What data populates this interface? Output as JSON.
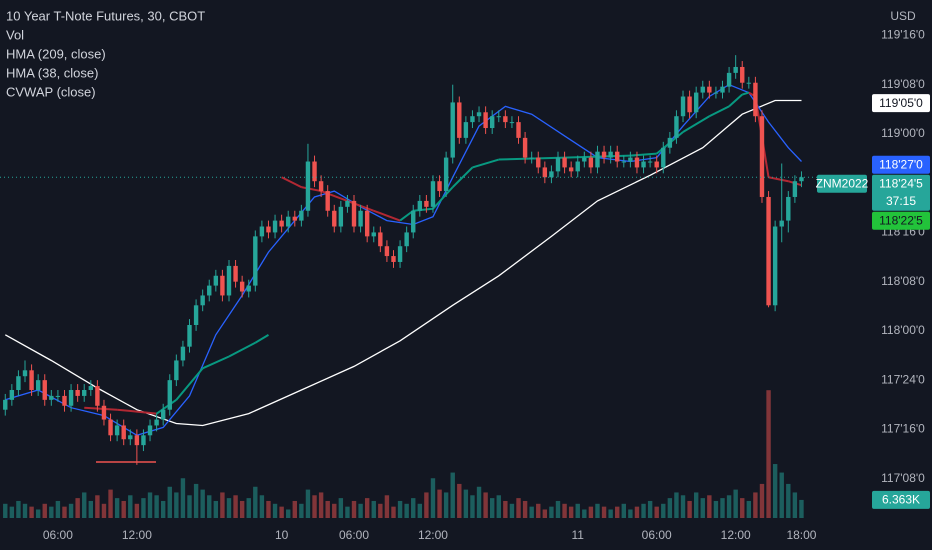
{
  "chart_data": {
    "type": "candlestick",
    "title": "10 Year T-Note Futures, 30, CBOT",
    "currency": "USD",
    "xlim": [
      -0.8,
      130.2
    ],
    "xticks": [
      {
        "value": 8,
        "label": "06:00"
      },
      {
        "value": 20,
        "label": "12:00"
      },
      {
        "value": 42,
        "label": "10"
      },
      {
        "value": 53,
        "label": "06:00"
      },
      {
        "value": 65,
        "label": "12:00"
      },
      {
        "value": 87,
        "label": "11"
      },
      {
        "value": 99,
        "label": "06:00"
      },
      {
        "value": 111,
        "label": "12:00"
      },
      {
        "value": 121,
        "label": "18:00"
      }
    ],
    "ylim": [
      117.04,
      119.68
    ],
    "yticks": [
      {
        "value": 119.5,
        "label": "119'16'0"
      },
      {
        "value": 119.25,
        "label": "119'08'0"
      },
      {
        "value": 119,
        "label": "119'00'0"
      },
      {
        "value": 118.5,
        "label": "118'16'0"
      },
      {
        "value": 118.25,
        "label": "118'08'0"
      },
      {
        "value": 118,
        "label": "118'00'0"
      },
      {
        "value": 117.75,
        "label": "117'24'0"
      },
      {
        "value": 117.5,
        "label": "117'16'0"
      },
      {
        "value": 117.25,
        "label": "117'08'0"
      }
    ],
    "candles": {
      "up_color": "#26a69a",
      "down_color": "#ef5350",
      "open": [
        117.6,
        117.65,
        117.7,
        117.77,
        117.8,
        117.7,
        117.75,
        117.65,
        117.67,
        117.67,
        117.62,
        117.7,
        117.67,
        117.7,
        117.72,
        117.62,
        117.55,
        117.47,
        117.52,
        117.45,
        117.47,
        117.42,
        117.47,
        117.52,
        117.55,
        117.6,
        117.75,
        117.85,
        117.92,
        118.03,
        118.13,
        118.18,
        118.23,
        118.28,
        118.18,
        118.33,
        118.25,
        118.2,
        118.23,
        118.48,
        118.53,
        118.5,
        118.56,
        118.53,
        118.58,
        118.56,
        118.61,
        118.86,
        118.76,
        118.71,
        118.61,
        118.53,
        118.63,
        118.66,
        118.53,
        118.61,
        118.48,
        118.5,
        118.43,
        118.38,
        118.35,
        118.43,
        118.5,
        118.61,
        118.66,
        118.63,
        118.76,
        118.71,
        118.88,
        119.16,
        118.98,
        119.06,
        119.09,
        119.11,
        119.03,
        119.09,
        119.09,
        119.06,
        119.06,
        118.98,
        118.88,
        118.88,
        118.83,
        118.78,
        118.81,
        118.88,
        118.83,
        118.81,
        118.86,
        118.88,
        118.83,
        118.91,
        118.88,
        118.91,
        118.86,
        118.86,
        118.88,
        118.83,
        118.86,
        118.86,
        118.83,
        118.93,
        118.98,
        119.09,
        119.19,
        119.11,
        119.21,
        119.24,
        119.21,
        119.21,
        119.24,
        119.31,
        119.34,
        119.26,
        119.26,
        119.09,
        118.68,
        118.13,
        118.53,
        118.56,
        118.68,
        118.76
      ],
      "high": [
        117.68,
        117.73,
        117.8,
        117.85,
        117.83,
        117.78,
        117.78,
        117.7,
        117.7,
        117.7,
        117.73,
        117.73,
        117.73,
        117.75,
        117.75,
        117.65,
        117.58,
        117.55,
        117.55,
        117.5,
        117.5,
        117.5,
        117.55,
        117.58,
        117.63,
        117.78,
        117.88,
        117.95,
        118.06,
        118.16,
        118.21,
        118.26,
        118.31,
        118.31,
        118.36,
        118.36,
        118.28,
        118.26,
        118.51,
        118.56,
        118.56,
        118.59,
        118.59,
        118.61,
        118.61,
        118.64,
        118.95,
        118.89,
        118.79,
        118.74,
        118.64,
        118.66,
        118.69,
        118.69,
        118.64,
        118.64,
        118.53,
        118.53,
        118.46,
        118.41,
        118.46,
        118.53,
        118.64,
        118.69,
        118.69,
        118.79,
        118.79,
        118.91,
        119.25,
        119.19,
        119.09,
        119.12,
        119.14,
        119.14,
        119.12,
        119.12,
        119.12,
        119.09,
        119.09,
        119.01,
        118.91,
        118.91,
        118.86,
        118.84,
        118.91,
        118.91,
        118.86,
        118.89,
        118.91,
        118.91,
        118.94,
        118.94,
        118.94,
        118.94,
        118.89,
        118.91,
        118.91,
        118.89,
        118.89,
        118.89,
        118.96,
        119.01,
        119.12,
        119.22,
        119.22,
        119.24,
        119.27,
        119.27,
        119.24,
        119.27,
        119.34,
        119.4,
        119.37,
        119.29,
        119.29,
        119.12,
        118.71,
        118.56,
        118.85,
        118.71,
        118.79,
        118.81
      ],
      "low": [
        117.57,
        117.62,
        117.67,
        117.74,
        117.67,
        117.67,
        117.62,
        117.62,
        117.64,
        117.59,
        117.59,
        117.64,
        117.64,
        117.67,
        117.59,
        117.52,
        117.44,
        117.44,
        117.42,
        117.42,
        117.32,
        117.39,
        117.44,
        117.49,
        117.52,
        117.57,
        117.72,
        117.82,
        117.89,
        118.0,
        118.1,
        118.15,
        118.2,
        118.15,
        118.15,
        118.22,
        118.17,
        118.17,
        118.2,
        118.45,
        118.47,
        118.47,
        118.5,
        118.5,
        118.53,
        118.53,
        118.58,
        118.73,
        118.68,
        118.58,
        118.5,
        118.5,
        118.6,
        118.5,
        118.5,
        118.45,
        118.45,
        118.4,
        118.35,
        118.32,
        118.32,
        118.4,
        118.47,
        118.58,
        118.6,
        118.6,
        118.68,
        118.68,
        118.85,
        118.95,
        118.95,
        119.03,
        119.06,
        119.0,
        119.0,
        119.06,
        119.03,
        119.03,
        118.95,
        118.85,
        118.85,
        118.8,
        118.75,
        118.75,
        118.78,
        118.8,
        118.78,
        118.78,
        118.83,
        118.8,
        118.8,
        118.85,
        118.85,
        118.83,
        118.83,
        118.83,
        118.8,
        118.8,
        118.83,
        118.8,
        118.8,
        118.9,
        118.95,
        119.06,
        119.08,
        119.08,
        119.18,
        119.18,
        119.18,
        119.18,
        119.21,
        119.28,
        119.23,
        119.23,
        119.06,
        118.65,
        118.12,
        118.1,
        118.45,
        118.5,
        118.65,
        118.73
      ],
      "close": [
        117.65,
        117.7,
        117.77,
        117.8,
        117.7,
        117.75,
        117.65,
        117.67,
        117.67,
        117.62,
        117.7,
        117.67,
        117.7,
        117.72,
        117.62,
        117.55,
        117.47,
        117.52,
        117.45,
        117.47,
        117.42,
        117.47,
        117.52,
        117.55,
        117.6,
        117.75,
        117.85,
        117.92,
        118.03,
        118.13,
        118.18,
        118.23,
        118.28,
        118.18,
        118.33,
        118.25,
        118.2,
        118.23,
        118.48,
        118.53,
        118.5,
        118.56,
        118.53,
        118.58,
        118.56,
        118.61,
        118.86,
        118.76,
        118.71,
        118.61,
        118.53,
        118.63,
        118.66,
        118.53,
        118.61,
        118.48,
        118.5,
        118.43,
        118.38,
        118.35,
        118.43,
        118.5,
        118.61,
        118.66,
        118.63,
        118.76,
        118.71,
        118.88,
        119.16,
        118.98,
        119.06,
        119.09,
        119.11,
        119.03,
        119.09,
        119.09,
        119.06,
        119.06,
        118.98,
        118.88,
        118.88,
        118.83,
        118.78,
        118.81,
        118.88,
        118.83,
        118.81,
        118.86,
        118.88,
        118.83,
        118.91,
        118.88,
        118.91,
        118.86,
        118.86,
        118.88,
        118.83,
        118.86,
        118.86,
        118.83,
        118.93,
        118.98,
        119.09,
        119.19,
        119.11,
        119.21,
        119.24,
        119.21,
        119.21,
        119.24,
        119.31,
        119.34,
        119.26,
        119.26,
        119.09,
        118.68,
        118.13,
        118.53,
        118.56,
        118.68,
        118.76,
        118.78
      ]
    },
    "volume": {
      "name": "Vol",
      "vlim": [
        0,
        50
      ],
      "values": [
        5,
        4,
        6,
        5,
        4,
        3,
        5,
        4,
        6,
        4,
        5,
        7,
        9,
        6,
        8,
        5,
        10,
        7,
        6,
        8,
        5,
        7,
        9,
        8,
        6,
        11,
        9,
        14,
        8,
        12,
        10,
        8,
        6,
        9,
        7,
        8,
        6,
        7,
        11,
        8,
        6,
        5,
        4,
        3,
        6,
        5,
        10,
        8,
        9,
        6,
        5,
        7,
        4,
        6,
        5,
        7,
        6,
        5,
        8,
        4,
        6,
        5,
        7,
        5,
        9,
        14,
        10,
        9,
        16,
        12,
        10,
        8,
        11,
        9,
        7,
        8,
        6,
        5,
        7,
        6,
        4,
        5,
        3,
        4,
        6,
        5,
        4,
        5,
        3,
        4,
        5,
        4,
        3,
        4,
        5,
        3,
        4,
        5,
        6,
        4,
        5,
        7,
        9,
        8,
        6,
        9,
        7,
        8,
        6,
        7,
        8,
        10,
        7,
        6,
        9,
        12,
        45,
        19,
        16,
        12,
        9,
        6.363
      ],
      "label": {
        "value": 6.363,
        "label": "6.363K"
      }
    },
    "series": [
      {
        "name": "HMA (209, close)",
        "color": "#ffffff",
        "x": [
          0,
          7,
          14,
          20,
          26,
          30,
          37,
          45,
          53,
          60,
          68,
          75,
          83,
          90,
          98,
          106,
          112,
          117,
          121
        ],
        "values": [
          117.98,
          117.85,
          117.71,
          117.6,
          117.53,
          117.52,
          117.58,
          117.7,
          117.82,
          117.95,
          118.13,
          118.28,
          118.48,
          118.66,
          118.79,
          118.93,
          119.1,
          119.17,
          119.17
        ]
      },
      {
        "name": "HMA (38, close)",
        "color": "#2962ff",
        "x": [
          0,
          5,
          10,
          15,
          20,
          24,
          28,
          32,
          36,
          40,
          44,
          47,
          50,
          54,
          58,
          62,
          65,
          68,
          72,
          76,
          80,
          85,
          90,
          95,
          99,
          103,
          107,
          110,
          113,
          116,
          119,
          121
        ],
        "values": [
          117.65,
          117.7,
          117.61,
          117.57,
          117.47,
          117.51,
          117.67,
          117.98,
          118.18,
          118.4,
          118.56,
          118.68,
          118.71,
          118.63,
          118.56,
          118.54,
          118.58,
          118.78,
          119.04,
          119.14,
          119.1,
          118.99,
          118.88,
          118.86,
          118.88,
          119.04,
          119.19,
          119.25,
          119.21,
          119.06,
          118.93,
          118.86
        ]
      },
      {
        "name": "CVWAP (close)",
        "color": "#089981",
        "down_color": "#b22833",
        "x": [
          12,
          17,
          23,
          26,
          30,
          34,
          38,
          40,
          41,
          42,
          45,
          48,
          52,
          56,
          60,
          62,
          65,
          68,
          71,
          75,
          85,
          95,
          99,
          103,
          107,
          110,
          112,
          113,
          114,
          116,
          119,
          121
        ],
        "values": [
          117.61,
          117.6,
          117.58,
          117.65,
          117.81,
          117.87,
          117.94,
          117.98,
          null,
          118.78,
          118.73,
          118.71,
          118.66,
          118.61,
          118.56,
          118.61,
          118.62,
          118.73,
          118.83,
          118.87,
          118.88,
          118.89,
          118.9,
          119.01,
          119.09,
          119.14,
          119.2,
          119.21,
          119.19,
          118.78,
          118.76,
          118.74
        ]
      }
    ],
    "price_labels": [
      {
        "value": 119.15625,
        "label": "119'05'0",
        "color": "#ffffff",
        "text_color": "#131722"
      },
      {
        "value": 118.84375,
        "label": "118'27'0",
        "color": "#2962ff",
        "text_color": "#ffffff"
      },
      {
        "value": 118.765625,
        "label": "118'24'5",
        "countdown": "37:15",
        "symbol": "ZNM2022",
        "color": "#26a69a",
        "text_color": "#ffffff"
      },
      {
        "value": 118.703125,
        "label": "118'22'5",
        "color": "#22c33a",
        "text_color": "#131722"
      }
    ]
  }
}
